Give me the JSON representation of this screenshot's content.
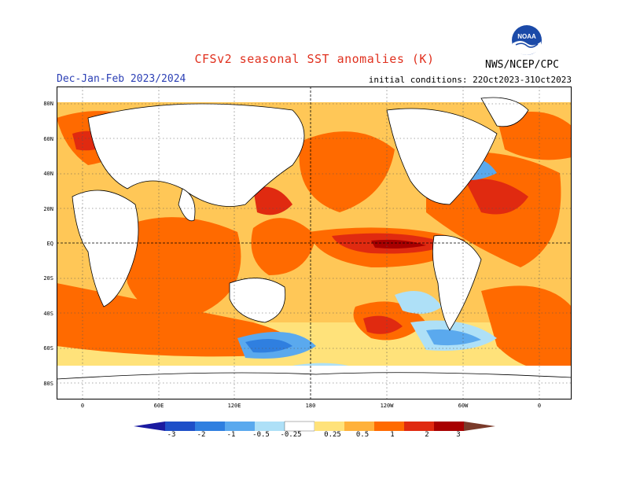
{
  "header": {
    "title": "CFSv2 seasonal SST anomalies (K)",
    "period": "Dec-Jan-Feb 2023/2024",
    "initial_conditions": "initial conditions: 22Oct2023-31Oct2023",
    "agency": "NWS/NCEP/CPC",
    "logo_text": "NOAA"
  },
  "map": {
    "lat_labels": [
      "80N",
      "60N",
      "40N",
      "20N",
      "EQ",
      "20S",
      "40S",
      "60S",
      "80S"
    ],
    "lon_labels": [
      "0",
      "60E",
      "120E",
      "180",
      "120W",
      "60W",
      "0"
    ],
    "colors": {
      "land": "#ffffff",
      "ocean_neutral": "#ffffff",
      "grid": "#555555"
    }
  },
  "colorbar": {
    "labels": [
      "-3",
      "-2",
      "-1",
      "-0.5",
      "-0.25",
      "0.25",
      "0.5",
      "1",
      "2",
      "3"
    ],
    "colors": [
      "#1a1aa0",
      "#1e4fc8",
      "#2f7fe0",
      "#5aa9ee",
      "#aee0f7",
      "#ffffff",
      "#ffe27a",
      "#ffb13b",
      "#ff6a00",
      "#e02a10",
      "#a80000",
      "#7a3a2a"
    ]
  }
}
